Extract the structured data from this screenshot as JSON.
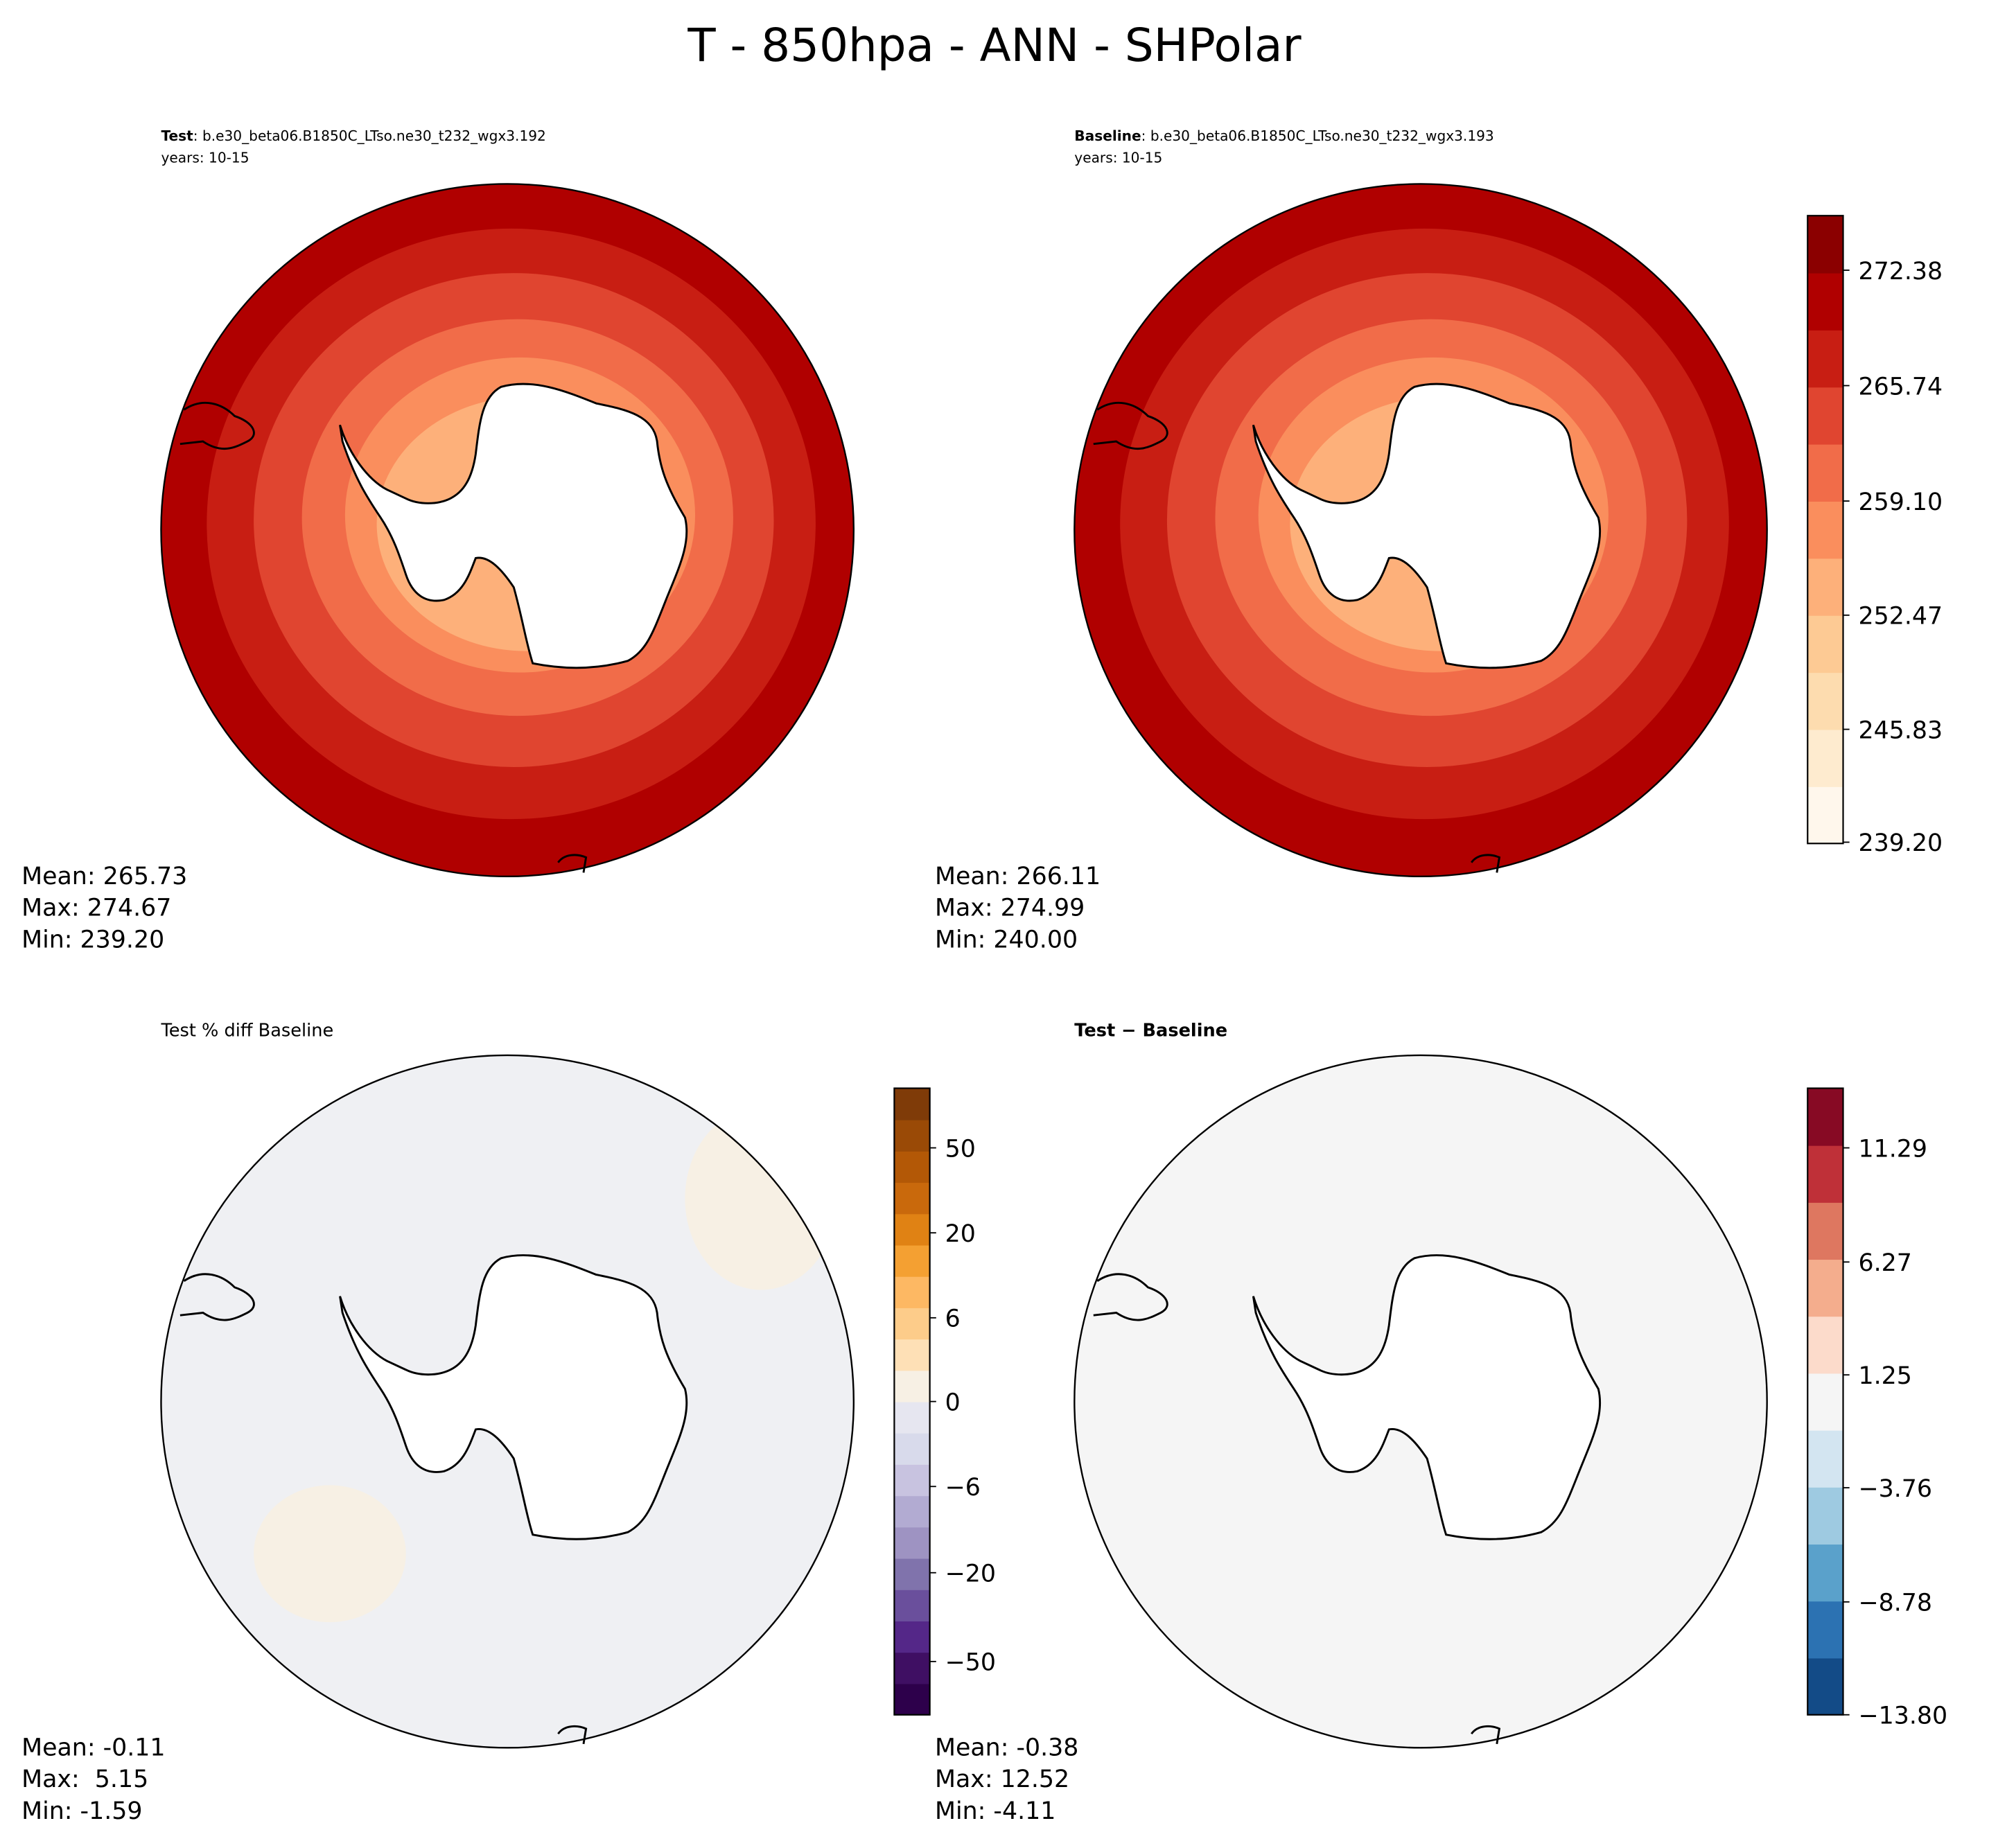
{
  "chart_data": {
    "type": "heatmap",
    "title": "T - 850hpa - ANN - SHPolar",
    "panels": [
      {
        "id": "test",
        "title_bold": "Test",
        "title_rest": ": b.e30_beta06.B1850C_LTso.ne30_t232_wgx3.192",
        "subtitle": "years: 10-15",
        "stats": [
          "Mean: 265.73",
          "Max: 274.67",
          "Min: 239.20"
        ],
        "mean": 265.73,
        "max": 274.67,
        "min": 239.2
      },
      {
        "id": "baseline",
        "title_bold": "Baseline",
        "title_rest": ": b.e30_beta06.B1850C_LTso.ne30_t232_wgx3.193",
        "subtitle": "years: 10-15",
        "stats": [
          "Mean: 266.11",
          "Max: 274.99",
          "Min: 240.00"
        ],
        "mean": 266.11,
        "max": 274.99,
        "min": 240.0
      },
      {
        "id": "pct_diff",
        "title": "Test % diff Baseline",
        "stats": [
          "Mean: -0.11",
          "Max:  5.15",
          "Min: -1.59"
        ],
        "mean": -0.11,
        "max": 5.15,
        "min": -1.59
      },
      {
        "id": "diff",
        "title_bold": "Test − Baseline",
        "stats": [
          "Mean: -0.38",
          "Max: 12.52",
          "Min: -4.11"
        ],
        "mean": -0.38,
        "max": 12.52,
        "min": -4.11
      }
    ],
    "colorbars": [
      {
        "for": "test-baseline",
        "ticks": [
          "272.38",
          "265.74",
          "259.10",
          "252.47",
          "245.83",
          "239.20"
        ],
        "tick_values": [
          272.38,
          265.74,
          259.1,
          252.47,
          245.83,
          239.2
        ],
        "range": [
          239.2,
          275.7
        ],
        "colors": [
          "#fff7ec",
          "#feebcf",
          "#fddcaf",
          "#fdca94",
          "#fdb07a",
          "#fa8e5d",
          "#f16c49",
          "#e04530",
          "#c81e13",
          "#b00000",
          "#8b0000"
        ]
      },
      {
        "for": "pct_diff",
        "ticks": [
          "50",
          "20",
          "6",
          "0",
          "−6",
          "−20",
          "−50"
        ],
        "colors": [
          "#2d004b",
          "#3f0f63",
          "#542788",
          "#6a4f9c",
          "#8073ac",
          "#9e93c2",
          "#b2abd2",
          "#c8c3e0",
          "#d8daeb",
          "#e6e6f0",
          "#f7f0e4",
          "#fee0b6",
          "#fdcc8a",
          "#fdb863",
          "#f4a032",
          "#e08214",
          "#c9690c",
          "#b35806",
          "#9a4a06",
          "#7f3b08"
        ]
      },
      {
        "for": "diff",
        "ticks": [
          "11.29",
          "6.27",
          "1.25",
          "−3.76",
          "−8.78",
          "−13.80"
        ],
        "tick_values": [
          11.29,
          6.27,
          1.25,
          -3.76,
          -8.78,
          -13.8
        ],
        "range": [
          -13.8,
          13.8
        ],
        "colors": [
          "#134b87",
          "#2c72b2",
          "#5aa1cb",
          "#9ecae1",
          "#d3e5f1",
          "#f5f5f5",
          "#fcdbcb",
          "#f4ad8d",
          "#de7760",
          "#bf3038",
          "#870a24"
        ]
      }
    ]
  }
}
